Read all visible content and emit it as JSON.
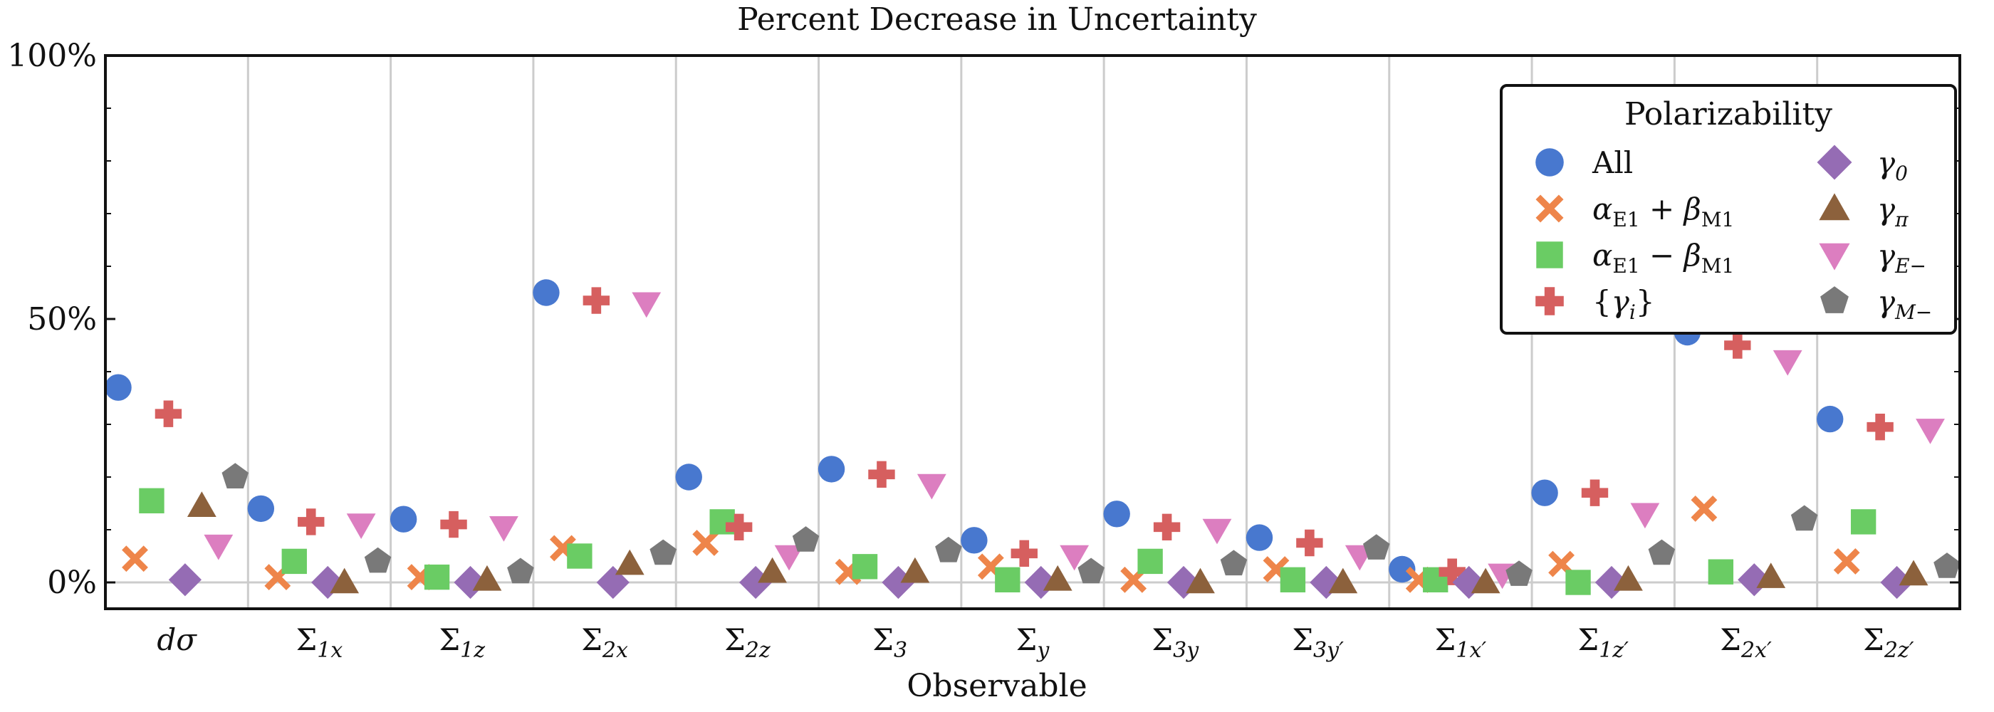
{
  "chart_data": {
    "type": "scatter",
    "title": "Percent Decrease in Uncertainty",
    "xlabel": "Observable",
    "ylabel": "",
    "ylim": [
      -5,
      100
    ],
    "y_ticks": [
      0,
      50,
      100
    ],
    "y_tick_labels": [
      "0%",
      "50%",
      "100%"
    ],
    "grid": "vertical separators between categories, horizontal line at 0%",
    "categories": [
      "dσ",
      "Σ1x",
      "Σ1z",
      "Σ2x",
      "Σ2z",
      "Σ3",
      "Σy",
      "Σ3y",
      "Σ3y′",
      "Σ1x′",
      "Σ1z′",
      "Σ2x′",
      "Σ2z′"
    ],
    "category_labels": [
      {
        "main": "dσ",
        "sub": ""
      },
      {
        "main": "Σ",
        "sub": "1x"
      },
      {
        "main": "Σ",
        "sub": "1z"
      },
      {
        "main": "Σ",
        "sub": "2x"
      },
      {
        "main": "Σ",
        "sub": "2z"
      },
      {
        "main": "Σ",
        "sub": "3"
      },
      {
        "main": "Σ",
        "sub": "y"
      },
      {
        "main": "Σ",
        "sub": "3y"
      },
      {
        "main": "Σ",
        "sub": "3y′"
      },
      {
        "main": "Σ",
        "sub": "1x′"
      },
      {
        "main": "Σ",
        "sub": "1z′"
      },
      {
        "main": "Σ",
        "sub": "2x′"
      },
      {
        "main": "Σ",
        "sub": "2z′"
      }
    ],
    "legend": {
      "title": "Polarizability",
      "position": "top-right",
      "columns": 2
    },
    "series": [
      {
        "name": "All",
        "main": "All",
        "sub": "",
        "marker": "circle",
        "color": "#4878cf",
        "values": [
          37,
          14,
          12,
          55,
          20,
          21.5,
          8,
          13,
          8.5,
          2.5,
          17,
          47.5,
          31
        ]
      },
      {
        "name": "αE1 + βM1",
        "main": "α + β",
        "sub1": "E1",
        "sub2": "M1",
        "marker": "x",
        "color": "#ee854a",
        "values": [
          4.5,
          1,
          1,
          6.5,
          7.5,
          2,
          3,
          0.5,
          2.5,
          0.5,
          3.5,
          14,
          4
        ]
      },
      {
        "name": "αE1 − βM1",
        "main": "α − β",
        "sub1": "E1",
        "sub2": "M1",
        "marker": "square",
        "color": "#6acc64",
        "values": [
          15.5,
          4,
          1,
          5,
          11.5,
          3,
          0.5,
          4,
          0.5,
          0.5,
          0,
          2,
          11.5
        ]
      },
      {
        "name": "{γi}",
        "main": "{γi}",
        "sub": "i",
        "marker": "plus",
        "color": "#d65f5f",
        "values": [
          32,
          11.5,
          11,
          53.5,
          10.5,
          20.5,
          5.5,
          10.5,
          7.5,
          2,
          17,
          45,
          29.5
        ]
      },
      {
        "name": "γ0",
        "main": "γ",
        "sub": "0",
        "marker": "diamond",
        "color": "#956cb4",
        "values": [
          0.5,
          0,
          0,
          0,
          0,
          0,
          0,
          0,
          0,
          0,
          0,
          0.5,
          0
        ]
      },
      {
        "name": "γπ",
        "main": "γ",
        "sub": "π",
        "marker": "triangle-up",
        "color": "#8c613c",
        "values": [
          14.5,
          0,
          0.5,
          3.5,
          2,
          2,
          0.5,
          0,
          0,
          0,
          0.5,
          1,
          1.5
        ]
      },
      {
        "name": "γE−",
        "main": "γ",
        "sub": "E−",
        "marker": "triangle-down",
        "color": "#dc7ec0",
        "values": [
          7,
          11,
          10.5,
          53,
          5,
          18.5,
          5,
          10,
          5,
          1.5,
          13,
          42,
          29
        ]
      },
      {
        "name": "γM−",
        "main": "γ",
        "sub": "M−",
        "marker": "pentagon",
        "color": "#797979",
        "values": [
          20,
          4,
          2,
          5.5,
          8,
          6,
          2,
          3.5,
          6.5,
          1.5,
          5.5,
          12,
          3
        ]
      }
    ]
  }
}
